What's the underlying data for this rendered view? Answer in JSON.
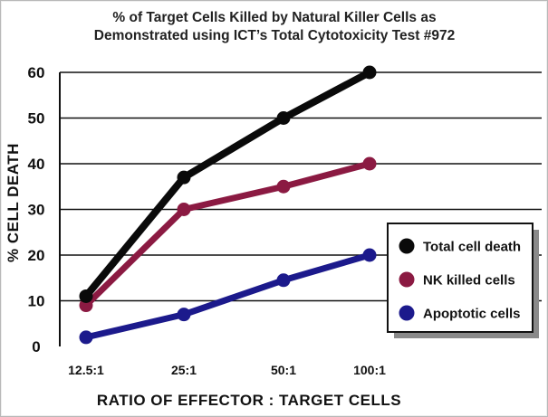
{
  "chart_data": {
    "type": "line",
    "title_lines": [
      "% of Target Cells Killed by Natural Killer Cells as",
      "Demonstrated using ICT’s Total Cytotoxicity Test #972"
    ],
    "xlabel": "RATIO OF EFFECTOR : TARGET CELLS",
    "ylabel": "% CELL DEATH",
    "categories": [
      "12.5:1",
      "25:1",
      "50:1",
      "100:1"
    ],
    "ylim": [
      0,
      60
    ],
    "yticks": [
      0,
      10,
      20,
      30,
      40,
      50,
      60
    ],
    "grid": "horizontal",
    "legend_position": "right",
    "series": [
      {
        "name": "Total cell death",
        "color": "#0a0a0a",
        "values": [
          11,
          37,
          50,
          60
        ]
      },
      {
        "name": "NK killed cells",
        "color": "#8b1a42",
        "values": [
          9,
          30,
          35,
          40
        ]
      },
      {
        "name": "Apoptotic cells",
        "color": "#1c1a8c",
        "values": [
          2,
          7,
          14.5,
          20
        ]
      }
    ]
  }
}
